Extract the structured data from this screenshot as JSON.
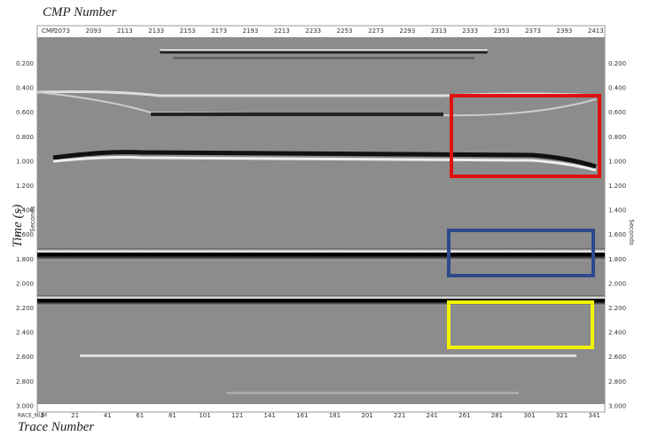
{
  "header": {
    "title": "CMP Number"
  },
  "top_axis": {
    "name": "CMP",
    "labels": [
      "2073",
      "2093",
      "2113",
      "2133",
      "2153",
      "2173",
      "2193",
      "2213",
      "2233",
      "2253",
      "2273",
      "2293",
      "2313",
      "2333",
      "2353",
      "2373",
      "2393",
      "2413"
    ]
  },
  "bottom_axis": {
    "name": "RACE_NUM",
    "labels": [
      "1",
      "21",
      "41",
      "61",
      "81",
      "101",
      "121",
      "141",
      "161",
      "181",
      "201",
      "221",
      "241",
      "261",
      "281",
      "301",
      "321",
      "341"
    ],
    "title": "Trace Number"
  },
  "time_axis": {
    "title": "Time (s)",
    "unit": "Seconds",
    "labels": [
      "0.200",
      "0.400",
      "0.600",
      "0.800",
      "1.000",
      "1.200",
      "1.400",
      "1.600",
      "1.800",
      "2.000",
      "2.200",
      "2.400",
      "2.600",
      "2.800",
      "3.000"
    ]
  }
}
